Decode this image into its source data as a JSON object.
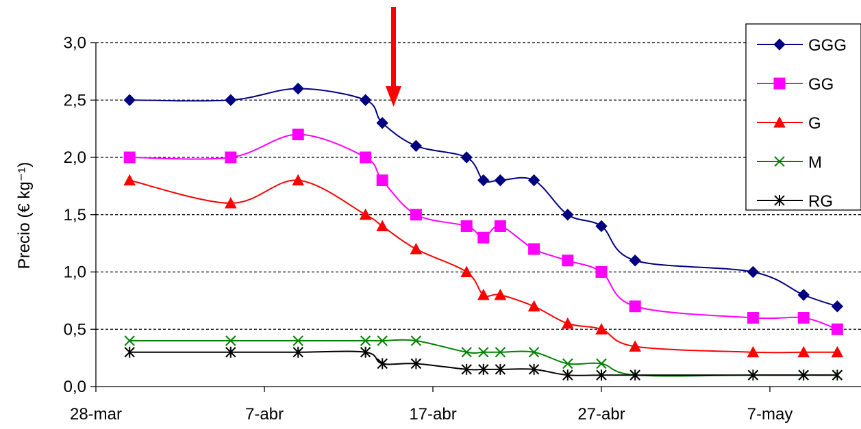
{
  "chart_data": {
    "type": "line",
    "ylabel": "Precio (€ kg⁻¹)",
    "ylim": [
      0,
      3
    ],
    "y_ticks": [
      "0,0",
      "0,5",
      "1,0",
      "1,5",
      "2,0",
      "2,5",
      "3,0"
    ],
    "x_start": "2024-03-28",
    "x_ticks": [
      "28-mar",
      "7-abr",
      "17-abr",
      "27-abr",
      "7-may"
    ],
    "grid": "horizontal dashed",
    "legend": "top-right",
    "annotation": "red downward arrow near 15-abr",
    "series": [
      {
        "name": "GGG",
        "color": "#000080",
        "marker": "diamond",
        "points": [
          [
            2,
            2.5
          ],
          [
            8,
            2.5
          ],
          [
            12,
            2.6
          ],
          [
            16,
            2.5
          ],
          [
            17,
            2.3
          ],
          [
            19,
            2.1
          ],
          [
            22,
            2.0
          ],
          [
            23,
            1.8
          ],
          [
            24,
            1.8
          ],
          [
            26,
            1.8
          ],
          [
            28,
            1.5
          ],
          [
            30,
            1.4
          ],
          [
            32,
            1.1
          ],
          [
            39,
            1.0
          ],
          [
            42,
            0.8
          ],
          [
            44,
            0.7
          ]
        ]
      },
      {
        "name": "GG",
        "color": "#FF00FF",
        "marker": "square",
        "points": [
          [
            2,
            2.0
          ],
          [
            8,
            2.0
          ],
          [
            12,
            2.2
          ],
          [
            16,
            2.0
          ],
          [
            17,
            1.8
          ],
          [
            19,
            1.5
          ],
          [
            22,
            1.4
          ],
          [
            23,
            1.3
          ],
          [
            24,
            1.4
          ],
          [
            26,
            1.2
          ],
          [
            28,
            1.1
          ],
          [
            30,
            1.0
          ],
          [
            32,
            0.7
          ],
          [
            39,
            0.6
          ],
          [
            42,
            0.6
          ],
          [
            44,
            0.5
          ]
        ]
      },
      {
        "name": "G",
        "color": "#FF0000",
        "marker": "triangle",
        "points": [
          [
            2,
            1.8
          ],
          [
            8,
            1.6
          ],
          [
            12,
            1.8
          ],
          [
            16,
            1.5
          ],
          [
            17,
            1.4
          ],
          [
            19,
            1.2
          ],
          [
            22,
            1.0
          ],
          [
            23,
            0.8
          ],
          [
            24,
            0.8
          ],
          [
            26,
            0.7
          ],
          [
            28,
            0.55
          ],
          [
            30,
            0.5
          ],
          [
            32,
            0.35
          ],
          [
            39,
            0.3
          ],
          [
            42,
            0.3
          ],
          [
            44,
            0.3
          ]
        ]
      },
      {
        "name": "M",
        "color": "#008000",
        "marker": "x",
        "points": [
          [
            2,
            0.4
          ],
          [
            8,
            0.4
          ],
          [
            12,
            0.4
          ],
          [
            16,
            0.4
          ],
          [
            17,
            0.4
          ],
          [
            19,
            0.4
          ],
          [
            22,
            0.3
          ],
          [
            23,
            0.3
          ],
          [
            24,
            0.3
          ],
          [
            26,
            0.3
          ],
          [
            28,
            0.2
          ],
          [
            30,
            0.2
          ],
          [
            32,
            0.1
          ],
          [
            39,
            0.1
          ],
          [
            42,
            0.1
          ],
          [
            44,
            0.1
          ]
        ]
      },
      {
        "name": "RG",
        "color": "#000000",
        "marker": "star",
        "points": [
          [
            2,
            0.3
          ],
          [
            8,
            0.3
          ],
          [
            12,
            0.3
          ],
          [
            16,
            0.3
          ],
          [
            17,
            0.2
          ],
          [
            19,
            0.2
          ],
          [
            22,
            0.15
          ],
          [
            23,
            0.15
          ],
          [
            24,
            0.15
          ],
          [
            26,
            0.15
          ],
          [
            28,
            0.1
          ],
          [
            30,
            0.1
          ],
          [
            32,
            0.1
          ],
          [
            39,
            0.1
          ],
          [
            42,
            0.1
          ],
          [
            44,
            0.1
          ]
        ]
      }
    ]
  }
}
